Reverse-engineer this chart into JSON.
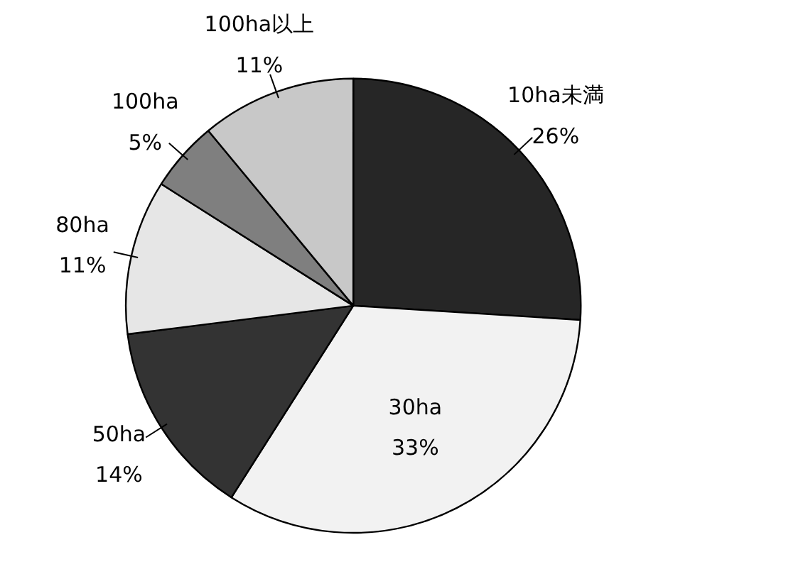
{
  "chart_data": {
    "type": "pie",
    "categories": [
      "10ha未満",
      "30ha",
      "50ha",
      "80ha",
      "100ha",
      "100ha以上"
    ],
    "values": [
      26,
      33,
      14,
      11,
      5,
      11
    ],
    "colors": [
      "#262626",
      "#f2f2f2",
      "#333333",
      "#e6e6e6",
      "#7f7f7f",
      "#c8c8c8"
    ],
    "value_labels": [
      "26%",
      "33%",
      "14%",
      "11%",
      "5%",
      "11%"
    ]
  }
}
